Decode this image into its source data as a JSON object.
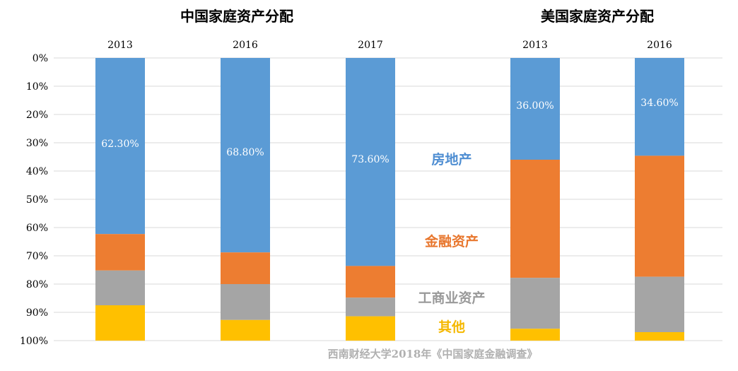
{
  "chart_data": [
    {
      "type": "bar",
      "stacked": true,
      "title": "中国家庭资产分配",
      "categories": [
        "2013",
        "2016",
        "2017"
      ],
      "series": [
        {
          "name": "房地产",
          "color": "#5b9bd5",
          "values": [
            62.3,
            68.8,
            73.6
          ],
          "labels": [
            "62.30%",
            "68.80%",
            "73.60%"
          ]
        },
        {
          "name": "金融资产",
          "color": "#ed7d31",
          "values": [
            12.9,
            11.2,
            11.2
          ]
        },
        {
          "name": "工商业资产",
          "color": "#a5a5a5",
          "values": [
            12.3,
            12.7,
            6.6
          ]
        },
        {
          "name": "其他",
          "color": "#ffc000",
          "values": [
            12.5,
            7.3,
            8.6
          ]
        }
      ],
      "ylim": [
        0,
        100
      ],
      "y_axis_inverted": true
    },
    {
      "type": "bar",
      "stacked": true,
      "title": "美国家庭资产分配",
      "categories": [
        "2013",
        "2016"
      ],
      "series": [
        {
          "name": "房地产",
          "color": "#5b9bd5",
          "values": [
            36.0,
            34.6
          ],
          "labels": [
            "36.00%",
            "34.60%"
          ]
        },
        {
          "name": "金融资产",
          "color": "#ed7d31",
          "values": [
            41.8,
            42.8
          ]
        },
        {
          "name": "工商业资产",
          "color": "#a5a5a5",
          "values": [
            18.0,
            19.6
          ]
        },
        {
          "name": "其他",
          "color": "#ffc000",
          "values": [
            4.2,
            3.0
          ]
        }
      ],
      "ylim": [
        0,
        100
      ],
      "y_axis_inverted": true
    }
  ],
  "y_ticks": [
    "0%",
    "10%",
    "20%",
    "30%",
    "40%",
    "50%",
    "60%",
    "70%",
    "80%",
    "90%",
    "100%"
  ],
  "legend": [
    {
      "name": "房地产",
      "color": "#4f8ed2"
    },
    {
      "name": "金融资产",
      "color": "#e8772e"
    },
    {
      "name": "工商业资产",
      "color": "#999999"
    },
    {
      "name": "其他",
      "color": "#f5b800"
    }
  ],
  "source": "西南财经大学2018年《中国家庭金融调查》"
}
